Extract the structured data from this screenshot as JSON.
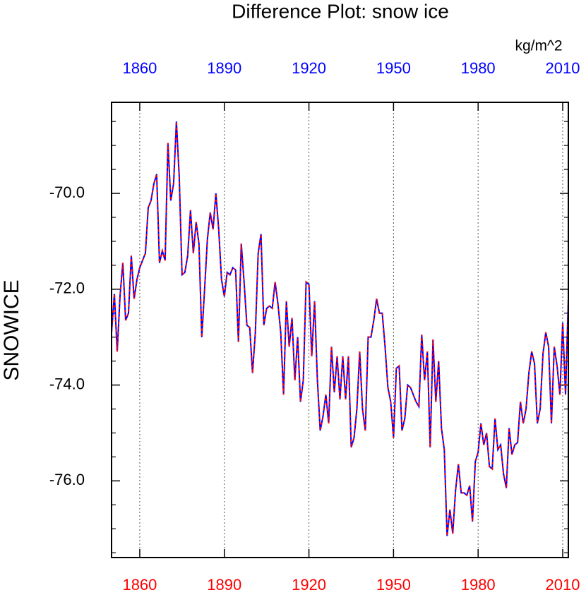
{
  "chart_data": {
    "type": "line",
    "title": "Difference Plot: snow ice",
    "units": "kg/m^2",
    "y_label": "SNOWICE",
    "xlim": [
      1850,
      2012
    ],
    "ylim": [
      -77.6,
      -68.1
    ],
    "xticks": [
      1860,
      1890,
      1920,
      1950,
      1980,
      2010
    ],
    "yticks": [
      {
        "value": -70,
        "label": "-70.0"
      },
      {
        "value": -72,
        "label": "-72.0"
      },
      {
        "value": -74,
        "label": "-74.0"
      },
      {
        "value": -76,
        "label": "-76.0"
      }
    ],
    "yminorticks": [
      -68.5,
      -69,
      -69.5,
      -70.5,
      -71,
      -71.5,
      -72.5,
      -73,
      -73.5,
      -74.5,
      -75,
      -75.5,
      -76.5,
      -77,
      -77.5
    ],
    "grid": true,
    "top_tick_color": "#0000ff",
    "bottom_tick_color": "#ff0000",
    "color": "#0000ff",
    "dash_color": "#ff0000",
    "x": [
      1850,
      1851,
      1852,
      1853,
      1854,
      1855,
      1856,
      1857,
      1858,
      1859,
      1860,
      1861,
      1862,
      1863,
      1864,
      1865,
      1866,
      1867,
      1868,
      1869,
      1870,
      1871,
      1872,
      1873,
      1874,
      1875,
      1876,
      1877,
      1878,
      1879,
      1880,
      1881,
      1882,
      1883,
      1884,
      1885,
      1886,
      1887,
      1888,
      1889,
      1890,
      1891,
      1892,
      1893,
      1894,
      1895,
      1896,
      1897,
      1898,
      1899,
      1900,
      1901,
      1902,
      1903,
      1904,
      1905,
      1906,
      1907,
      1908,
      1909,
      1910,
      1911,
      1912,
      1913,
      1914,
      1915,
      1916,
      1917,
      1918,
      1919,
      1920,
      1921,
      1922,
      1923,
      1924,
      1925,
      1926,
      1927,
      1928,
      1929,
      1930,
      1931,
      1932,
      1933,
      1934,
      1935,
      1936,
      1937,
      1938,
      1939,
      1940,
      1941,
      1942,
      1943,
      1944,
      1945,
      1946,
      1947,
      1948,
      1949,
      1950,
      1951,
      1952,
      1953,
      1954,
      1955,
      1956,
      1957,
      1958,
      1959,
      1960,
      1961,
      1962,
      1963,
      1964,
      1965,
      1966,
      1967,
      1968,
      1969,
      1970,
      1971,
      1972,
      1973,
      1974,
      1975,
      1976,
      1977,
      1978,
      1979,
      1980,
      1981,
      1982,
      1983,
      1984,
      1985,
      1986,
      1987,
      1988,
      1989,
      1990,
      1991,
      1992,
      1993,
      1994,
      1995,
      1996,
      1997,
      1998,
      1999,
      2000,
      2001,
      2002,
      2003,
      2004,
      2005,
      2006,
      2007,
      2008,
      2009,
      2010,
      2011,
      2012
    ],
    "values": [
      -72.9,
      -72.1,
      -73.3,
      -72.15,
      -71.45,
      -72.65,
      -72.5,
      -71.3,
      -72.2,
      -71.8,
      -71.55,
      -71.4,
      -71.25,
      -70.3,
      -70.15,
      -69.8,
      -69.6,
      -71.45,
      -71.2,
      -71.4,
      -68.95,
      -70.15,
      -69.8,
      -68.5,
      -69.65,
      -71.7,
      -71.65,
      -71.3,
      -70.35,
      -71.25,
      -70.6,
      -71.05,
      -73.0,
      -72.0,
      -70.95,
      -70.4,
      -70.75,
      -70.0,
      -70.75,
      -71.8,
      -72.15,
      -71.65,
      -71.7,
      -71.55,
      -71.6,
      -73.1,
      -71.05,
      -71.85,
      -72.75,
      -72.8,
      -73.75,
      -72.9,
      -71.25,
      -70.85,
      -72.75,
      -72.4,
      -72.35,
      -72.4,
      -71.85,
      -72.3,
      -72.9,
      -74.2,
      -72.25,
      -73.2,
      -72.6,
      -73.9,
      -73.0,
      -74.35,
      -73.9,
      -71.85,
      -71.9,
      -73.4,
      -72.25,
      -73.9,
      -74.95,
      -74.65,
      -74.2,
      -74.8,
      -73.2,
      -74.15,
      -73.4,
      -74.3,
      -73.4,
      -74.3,
      -73.4,
      -75.3,
      -75.1,
      -74.5,
      -73.3,
      -74.5,
      -74.95,
      -73.0,
      -73.0,
      -72.65,
      -72.2,
      -72.5,
      -72.5,
      -73.2,
      -74.05,
      -74.35,
      -75.1,
      -73.65,
      -73.6,
      -74.95,
      -74.7,
      -74.0,
      -74.05,
      -74.2,
      -74.35,
      -74.45,
      -72.95,
      -73.9,
      -73.3,
      -75.3,
      -73.05,
      -74.35,
      -73.5,
      -74.9,
      -75.35,
      -77.15,
      -76.6,
      -77.1,
      -76.2,
      -75.65,
      -76.25,
      -76.25,
      -76.3,
      -76.1,
      -76.85,
      -75.6,
      -75.4,
      -74.8,
      -75.25,
      -75.0,
      -75.7,
      -75.75,
      -74.7,
      -75.35,
      -75.25,
      -75.85,
      -76.15,
      -74.9,
      -75.45,
      -75.25,
      -75.2,
      -74.35,
      -74.8,
      -74.5,
      -73.75,
      -73.3,
      -73.55,
      -74.8,
      -74.5,
      -73.35,
      -72.9,
      -73.2,
      -74.8,
      -73.2,
      -73.6,
      -74.2,
      -72.7,
      -74.2,
      -72.2
    ]
  }
}
